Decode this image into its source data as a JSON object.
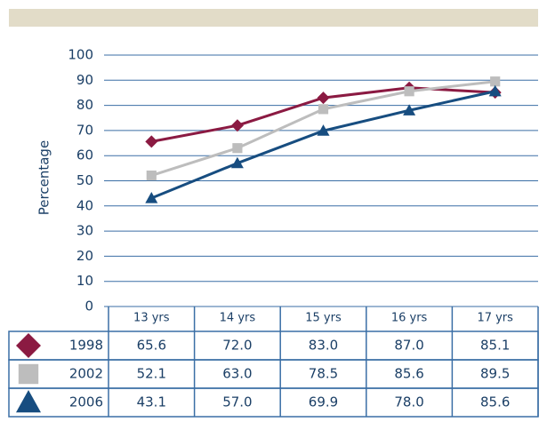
{
  "chart_data": {
    "type": "line",
    "ylabel": "Percentage",
    "categories": [
      "13 yrs",
      "14 yrs",
      "15 yrs",
      "16 yrs",
      "17 yrs"
    ],
    "series": [
      {
        "name": "1998",
        "color": "#8b1a42",
        "marker": "diamond",
        "values": [
          65.6,
          72.0,
          83.0,
          87.0,
          85.1
        ],
        "value_labels": [
          "65.6",
          "72.0",
          "83.0",
          "87.0",
          "85.1"
        ]
      },
      {
        "name": "2002",
        "color": "#bdbdbd",
        "marker": "square",
        "values": [
          52.1,
          63.0,
          78.5,
          85.6,
          89.5
        ],
        "value_labels": [
          "52.1",
          "63.0",
          "78.5",
          "85.6",
          "89.5"
        ]
      },
      {
        "name": "2006",
        "color": "#174d80",
        "marker": "triangle",
        "values": [
          43.1,
          57.0,
          69.9,
          78.0,
          85.6
        ],
        "value_labels": [
          "43.1",
          "57.0",
          "69.9",
          "78.0",
          "85.6"
        ]
      }
    ],
    "ylim": [
      0,
      100
    ],
    "yticks": [
      0,
      10,
      20,
      30,
      40,
      50,
      60,
      70,
      80,
      90,
      100
    ],
    "grid": true
  }
}
